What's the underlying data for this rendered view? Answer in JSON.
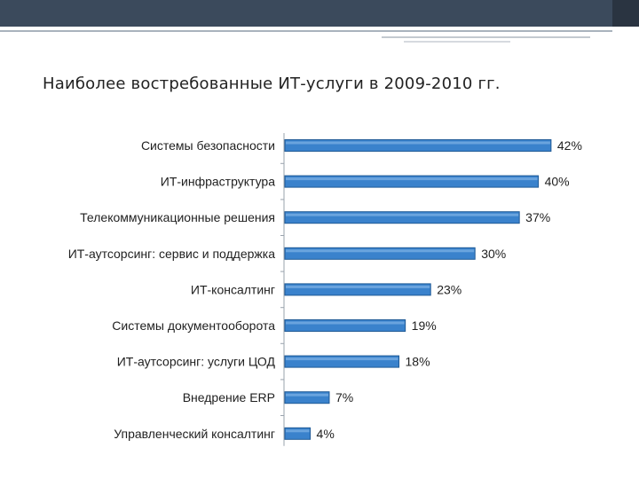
{
  "slide": {
    "title": "Наиболее востребованные ИТ-услуги в 2009-2010 гг."
  },
  "colors": {
    "bar_fill": "#3a82cc",
    "bar_stroke": "#1f5a96",
    "header_band": "#3b4a5c"
  },
  "chart_data": {
    "type": "bar",
    "orientation": "horizontal",
    "title": "",
    "xlabel": "",
    "ylabel": "",
    "xlim": [
      0,
      45
    ],
    "grid": false,
    "legend": "none",
    "categories": [
      "Системы безопасности",
      "ИТ-инфраструктура",
      "Телекоммуникационные решения",
      "ИТ-аутсорсинг: сервис и поддержка",
      "ИТ-консалтинг",
      "Системы документооборота",
      "ИТ-аутсорсинг: услуги ЦОД",
      "Внедрение ERP",
      "Управленческий консалтинг"
    ],
    "values": [
      42,
      40,
      37,
      30,
      23,
      19,
      18,
      7,
      4
    ],
    "value_labels": [
      "42%",
      "40%",
      "37%",
      "30%",
      "23%",
      "19%",
      "18%",
      "7%",
      "4%"
    ]
  }
}
